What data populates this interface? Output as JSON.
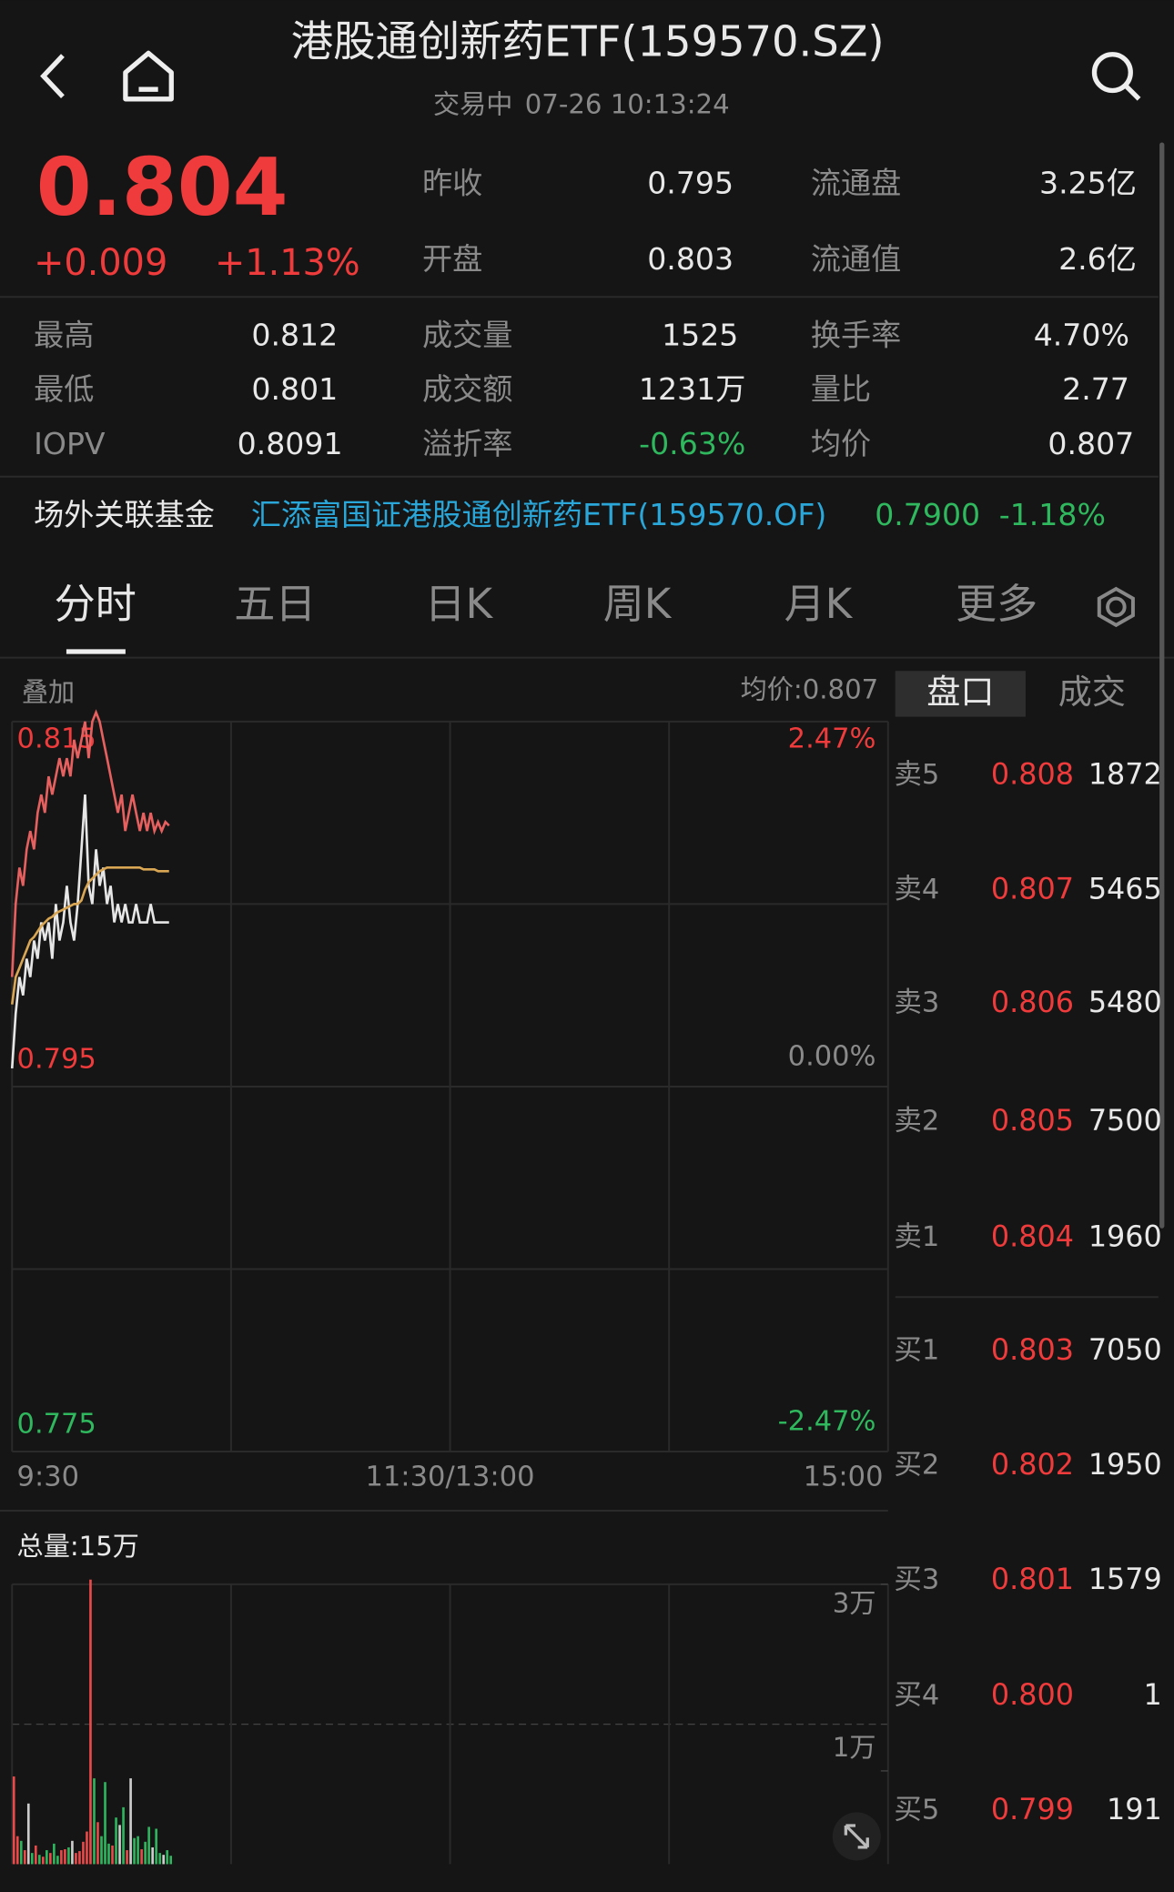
{
  "header": {
    "title": "港股通创新药ETF(159570.SZ)",
    "status": "交易中",
    "datetime": "07-26 10:13:24"
  },
  "quote": {
    "price": "0.804",
    "change": "+0.009",
    "change_pct": "+1.13%"
  },
  "stats": [
    {
      "label": "昨收",
      "value": "0.795"
    },
    {
      "label": "流通盘",
      "value": "3.25亿"
    },
    {
      "label": "开盘",
      "value": "0.803"
    },
    {
      "label": "流通值",
      "value": "2.6亿"
    },
    {
      "label": "最高",
      "value": "0.812"
    },
    {
      "label": "成交量",
      "value": "1525"
    },
    {
      "label": "换手率",
      "value": "4.70%"
    },
    {
      "label": "最低",
      "value": "0.801"
    },
    {
      "label": "成交额",
      "value": "1231万"
    },
    {
      "label": "量比",
      "value": "2.77"
    },
    {
      "label": "IOPV",
      "value": "0.8091"
    },
    {
      "label": "溢折率",
      "value": "-0.63%"
    },
    {
      "label": "均价",
      "value": "0.807"
    }
  ],
  "linked_fund": {
    "label": "场外关联基金",
    "name": "汇添富国证港股通创新药ETF(159570.OF)",
    "nav": "0.7900",
    "change": "-1.18%"
  },
  "tabs": [
    "分时",
    "五日",
    "日K",
    "周K",
    "月K",
    "更多"
  ],
  "chart_labels": {
    "overlay": "叠加",
    "avg": "均价:0.807",
    "total_volume": "总量:15万"
  },
  "order_book": {
    "tabs": [
      "盘口",
      "成交"
    ],
    "asks": [
      [
        "卖5",
        "0.808",
        "1872"
      ],
      [
        "卖4",
        "0.807",
        "5465"
      ],
      [
        "卖3",
        "0.806",
        "5480"
      ],
      [
        "卖2",
        "0.805",
        "7500"
      ],
      [
        "卖1",
        "0.804",
        "1960"
      ]
    ],
    "bids": [
      [
        "买1",
        "0.803",
        "7050"
      ],
      [
        "买2",
        "0.802",
        "1950"
      ],
      [
        "买3",
        "0.801",
        "1579"
      ],
      [
        "买4",
        "0.800",
        "1"
      ],
      [
        "买5",
        "0.799",
        "191"
      ]
    ]
  },
  "chart_data": [
    {
      "type": "line",
      "xlim": [
        0,
        240
      ],
      "ylim": [
        0.775,
        0.815
      ],
      "y2lim": [
        -2.47,
        2.47
      ],
      "yticks": [
        0.815,
        0.795,
        0.775
      ],
      "y2ticks": [
        {
          "value": 2.47,
          "label": "2.47%"
        },
        {
          "value": 0,
          "label": "0.00%"
        },
        {
          "value": -2.47,
          "label": "-2.47%"
        }
      ],
      "xticks": [
        {
          "value": 0,
          "label": "9:30"
        },
        {
          "value": 120,
          "label": "11:30/13:00"
        },
        {
          "value": 240,
          "label": "15:00"
        }
      ],
      "x": [
        0,
        1,
        2,
        3,
        4,
        5,
        6,
        7,
        8,
        9,
        10,
        11,
        12,
        13,
        14,
        15,
        16,
        17,
        18,
        19,
        20,
        21,
        22,
        23,
        24,
        25,
        26,
        27,
        28,
        29,
        30,
        31,
        32,
        33,
        34,
        35,
        36,
        37,
        38,
        39,
        40,
        41,
        42,
        43
      ],
      "series": [
        {
          "color": "#e5605f",
          "values": [
            0.801,
            0.805,
            0.807,
            0.806,
            0.808,
            0.809,
            0.808,
            0.81,
            0.811,
            0.81,
            0.812,
            0.811,
            0.812,
            0.813,
            0.812,
            0.813,
            0.812,
            0.814,
            0.813,
            0.814,
            0.815,
            0.813,
            0.815,
            0.8155,
            0.815,
            0.814,
            0.813,
            0.812,
            0.811,
            0.81,
            0.811,
            0.809,
            0.81,
            0.811,
            0.81,
            0.809,
            0.81,
            0.809,
            0.81,
            0.809,
            0.8095,
            0.809,
            0.8095,
            0.8093
          ]
        },
        {
          "color": "#e6e6e6",
          "values": [
            0.796,
            0.799,
            0.801,
            0.8,
            0.802,
            0.801,
            0.803,
            0.802,
            0.804,
            0.803,
            0.804,
            0.802,
            0.805,
            0.803,
            0.804,
            0.806,
            0.804,
            0.803,
            0.805,
            0.808,
            0.811,
            0.806,
            0.805,
            0.808,
            0.806,
            0.807,
            0.805,
            0.806,
            0.804,
            0.805,
            0.804,
            0.805,
            0.804,
            0.804,
            0.805,
            0.804,
            0.804,
            0.804,
            0.805,
            0.804,
            0.804,
            0.804,
            0.804,
            0.804
          ]
        },
        {
          "color": "#d9a653",
          "values": [
            0.7995,
            0.801,
            0.8015,
            0.802,
            0.8025,
            0.803,
            0.8032,
            0.8035,
            0.8038,
            0.804,
            0.8042,
            0.8043,
            0.8045,
            0.8046,
            0.8047,
            0.8048,
            0.8049,
            0.805,
            0.805,
            0.8052,
            0.8058,
            0.8062,
            0.8064,
            0.8066,
            0.8068,
            0.8069,
            0.807,
            0.807,
            0.807,
            0.807,
            0.807,
            0.807,
            0.807,
            0.807,
            0.807,
            0.807,
            0.8069,
            0.8069,
            0.8069,
            0.8069,
            0.8068,
            0.8068,
            0.8068,
            0.8068
          ]
        }
      ]
    },
    {
      "type": "bar",
      "xlim": [
        0,
        240
      ],
      "ylim": [
        0,
        30000
      ],
      "yticks": [
        {
          "value": 30000,
          "label": "3万"
        },
        {
          "value": 10000,
          "label": "1万"
        }
      ],
      "x": [
        0,
        1,
        2,
        3,
        4,
        5,
        6,
        7,
        8,
        9,
        10,
        11,
        12,
        13,
        14,
        15,
        16,
        17,
        18,
        19,
        20,
        21,
        22,
        23,
        24,
        25,
        26,
        27,
        28,
        29,
        30,
        31,
        32,
        33,
        34,
        35,
        36,
        37,
        38,
        39,
        40,
        41,
        42,
        43
      ],
      "values": [
        9400,
        3000,
        2500,
        1500,
        6500,
        1200,
        2000,
        1000,
        800,
        1500,
        1200,
        2200,
        900,
        1500,
        1600,
        1800,
        2500,
        1200,
        1400,
        2400,
        3500,
        30500,
        9200,
        4500,
        3000,
        8800,
        2200,
        2000,
        5000,
        4200,
        6100,
        1500,
        9200,
        2800,
        3000,
        1600,
        2400,
        4000,
        1800,
        3800,
        1200,
        1000,
        1500,
        900
      ],
      "bar_colors": [
        "#e84a4a",
        "#e84a4a",
        "#2db55d",
        "#e84a4a",
        "#cccccc",
        "#2db55d",
        "#e84a4a",
        "#2db55d",
        "#e84a4a",
        "#2db55d",
        "#e84a4a",
        "#2db55d",
        "#2db55d",
        "#e84a4a",
        "#e84a4a",
        "#2db55d",
        "#cccccc",
        "#e84a4a",
        "#e84a4a",
        "#e84a4a",
        "#e84a4a",
        "#e84a4a",
        "#2db55d",
        "#e84a4a",
        "#2db55d",
        "#2db55d",
        "#2db55d",
        "#e84a4a",
        "#2db55d",
        "#cccccc",
        "#2db55d",
        "#e84a4a",
        "#cccccc",
        "#2db55d",
        "#2db55d",
        "#e84a4a",
        "#2db55d",
        "#2db55d",
        "#cccccc",
        "#2db55d",
        "#2db55d",
        "#cccccc",
        "#2db55d",
        "#2db55d"
      ]
    }
  ]
}
